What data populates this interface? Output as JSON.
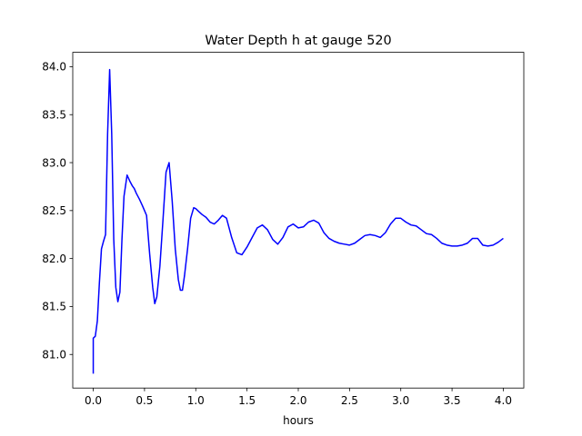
{
  "chart_data": {
    "type": "line",
    "title": "Water Depth h at gauge 520",
    "xlabel": "hours",
    "ylabel": "",
    "xlim": [
      -0.2,
      4.2
    ],
    "ylim": [
      80.65,
      84.15
    ],
    "xticks": [
      0.0,
      0.5,
      1.0,
      1.5,
      2.0,
      2.5,
      3.0,
      3.5,
      4.0
    ],
    "xtick_labels": [
      "0.0",
      "0.5",
      "1.0",
      "1.5",
      "2.0",
      "2.5",
      "3.0",
      "3.5",
      "4.0"
    ],
    "yticks": [
      81.0,
      81.5,
      82.0,
      82.5,
      83.0,
      83.5,
      84.0
    ],
    "ytick_labels": [
      "81.0",
      "81.5",
      "82.0",
      "82.5",
      "83.0",
      "83.5",
      "84.0"
    ],
    "grid": false,
    "series": [
      {
        "color": "#0000ff",
        "x": [
          0.0,
          0.0,
          0.02,
          0.04,
          0.06,
          0.08,
          0.1,
          0.12,
          0.14,
          0.16,
          0.18,
          0.2,
          0.22,
          0.24,
          0.26,
          0.28,
          0.3,
          0.33,
          0.36,
          0.38,
          0.4,
          0.42,
          0.45,
          0.48,
          0.5,
          0.52,
          0.55,
          0.58,
          0.6,
          0.62,
          0.65,
          0.68,
          0.71,
          0.74,
          0.77,
          0.8,
          0.83,
          0.85,
          0.87,
          0.89,
          0.92,
          0.95,
          0.98,
          1.0,
          1.03,
          1.06,
          1.1,
          1.14,
          1.18,
          1.22,
          1.26,
          1.3,
          1.35,
          1.4,
          1.45,
          1.5,
          1.55,
          1.6,
          1.65,
          1.7,
          1.75,
          1.8,
          1.85,
          1.9,
          1.95,
          2.0,
          2.05,
          2.1,
          2.15,
          2.2,
          2.25,
          2.3,
          2.35,
          2.4,
          2.45,
          2.5,
          2.55,
          2.6,
          2.65,
          2.7,
          2.75,
          2.8,
          2.85,
          2.9,
          2.95,
          3.0,
          3.05,
          3.1,
          3.15,
          3.2,
          3.25,
          3.3,
          3.35,
          3.4,
          3.45,
          3.5,
          3.55,
          3.6,
          3.65,
          3.7,
          3.75,
          3.8,
          3.85,
          3.9,
          3.95,
          4.0
        ],
        "y": [
          80.8,
          81.17,
          81.19,
          81.35,
          81.75,
          82.1,
          82.18,
          82.25,
          83.3,
          83.97,
          83.3,
          82.2,
          81.7,
          81.55,
          81.65,
          82.2,
          82.65,
          82.87,
          82.8,
          82.76,
          82.73,
          82.68,
          82.62,
          82.55,
          82.5,
          82.45,
          82.05,
          81.7,
          81.53,
          81.6,
          81.92,
          82.4,
          82.9,
          83.0,
          82.6,
          82.1,
          81.78,
          81.67,
          81.67,
          81.82,
          82.1,
          82.42,
          82.53,
          82.52,
          82.49,
          82.46,
          82.43,
          82.38,
          82.36,
          82.4,
          82.45,
          82.42,
          82.22,
          82.06,
          82.04,
          82.12,
          82.22,
          82.32,
          82.35,
          82.3,
          82.2,
          82.15,
          82.22,
          82.33,
          82.36,
          82.32,
          82.33,
          82.38,
          82.4,
          82.37,
          82.27,
          82.21,
          82.18,
          82.16,
          82.15,
          82.14,
          82.16,
          82.2,
          82.24,
          82.25,
          82.24,
          82.22,
          82.27,
          82.36,
          82.42,
          82.42,
          82.38,
          82.35,
          82.34,
          82.3,
          82.26,
          82.25,
          82.21,
          82.16,
          82.14,
          82.13,
          82.13,
          82.14,
          82.16,
          82.21,
          82.21,
          82.14,
          82.13,
          82.14,
          82.17,
          82.21
        ]
      }
    ]
  }
}
